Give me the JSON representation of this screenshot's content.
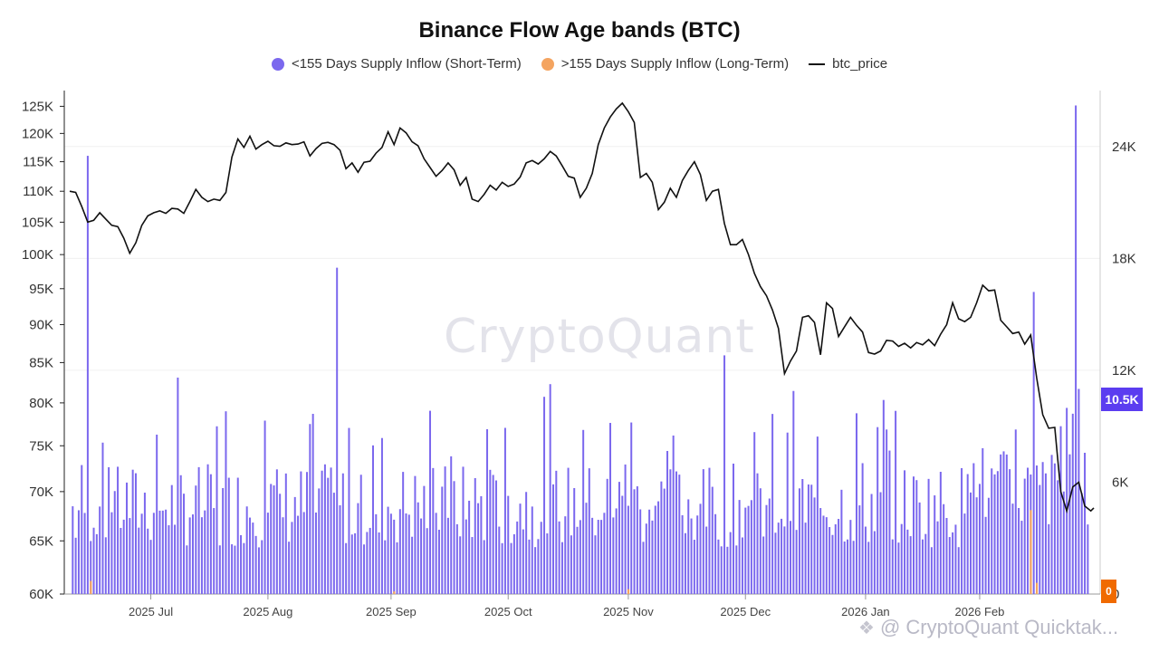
{
  "chart_data": {
    "type": "bar",
    "title": "Binance Flow Age bands (BTC)",
    "legend": {
      "placement": "top-center"
    },
    "series": [
      {
        "name": "<155 Days Supply Inflow (Short-Term)",
        "color": "#7b68ee",
        "axis": "right",
        "kind": "bar"
      },
      {
        "name": ">155 Days Supply Inflow (Long-Term)",
        "color": "#f4a460",
        "axis": "right",
        "kind": "bar"
      },
      {
        "name": "btc_price",
        "color": "#111111",
        "axis": "left",
        "kind": "line"
      }
    ],
    "x_ticks": [
      "2025 Jul",
      "2025 Aug",
      "2025 Sep",
      "2025 Oct",
      "2025 Nov",
      "2025 Dec",
      "2026 Jan",
      "2026 Feb"
    ],
    "left_axis": {
      "scale": "log",
      "range": [
        60000,
        128000
      ],
      "ticks": [
        "60K",
        "65K",
        "70K",
        "75K",
        "80K",
        "85K",
        "90K",
        "95K",
        "100K",
        "105K",
        "110K",
        "115K",
        "120K",
        "125K"
      ]
    },
    "right_axis": {
      "range": [
        0,
        27000
      ],
      "ticks": [
        "0",
        "6K",
        "12K",
        "18K",
        "24K"
      ]
    },
    "grid": true,
    "last_values": {
      "short_term": "10.5K",
      "long_term": "0"
    },
    "price_points": [
      [
        0,
        110000
      ],
      [
        2,
        109800
      ],
      [
        4,
        107500
      ],
      [
        6,
        105000
      ],
      [
        8,
        105300
      ],
      [
        10,
        106500
      ],
      [
        12,
        105500
      ],
      [
        14,
        104500
      ],
      [
        16,
        104300
      ],
      [
        18,
        102500
      ],
      [
        20,
        100200
      ],
      [
        22,
        101800
      ],
      [
        24,
        104500
      ],
      [
        26,
        106000
      ],
      [
        28,
        106500
      ],
      [
        30,
        106800
      ],
      [
        32,
        106400
      ],
      [
        34,
        107200
      ],
      [
        36,
        107100
      ],
      [
        38,
        106400
      ],
      [
        40,
        108300
      ],
      [
        42,
        110300
      ],
      [
        44,
        109000
      ],
      [
        46,
        108300
      ],
      [
        48,
        108700
      ],
      [
        50,
        108500
      ],
      [
        52,
        109800
      ],
      [
        54,
        115800
      ],
      [
        56,
        119000
      ],
      [
        58,
        117500
      ],
      [
        60,
        119500
      ],
      [
        62,
        117200
      ],
      [
        64,
        118000
      ],
      [
        66,
        118600
      ],
      [
        68,
        117800
      ],
      [
        70,
        117700
      ],
      [
        72,
        118300
      ],
      [
        74,
        118000
      ],
      [
        76,
        118100
      ],
      [
        78,
        118500
      ],
      [
        80,
        116000
      ],
      [
        82,
        117300
      ],
      [
        84,
        118200
      ],
      [
        86,
        118400
      ],
      [
        88,
        118000
      ],
      [
        90,
        117000
      ],
      [
        92,
        113800
      ],
      [
        94,
        114800
      ],
      [
        96,
        113200
      ],
      [
        98,
        114900
      ],
      [
        100,
        115100
      ],
      [
        102,
        116500
      ],
      [
        104,
        117500
      ],
      [
        106,
        120300
      ],
      [
        108,
        118000
      ],
      [
        110,
        121000
      ],
      [
        112,
        120100
      ],
      [
        114,
        118500
      ],
      [
        116,
        117800
      ],
      [
        118,
        115500
      ],
      [
        120,
        114000
      ],
      [
        122,
        112500
      ],
      [
        124,
        113500
      ],
      [
        126,
        114800
      ],
      [
        128,
        113600
      ],
      [
        130,
        111000
      ],
      [
        132,
        112300
      ],
      [
        134,
        108700
      ],
      [
        136,
        108300
      ],
      [
        138,
        109500
      ],
      [
        140,
        111000
      ],
      [
        142,
        110200
      ],
      [
        144,
        111500
      ],
      [
        146,
        110800
      ],
      [
        148,
        111200
      ],
      [
        150,
        112400
      ],
      [
        152,
        114800
      ],
      [
        154,
        115200
      ],
      [
        156,
        114600
      ],
      [
        158,
        115500
      ],
      [
        160,
        116800
      ],
      [
        162,
        116000
      ],
      [
        164,
        114300
      ],
      [
        166,
        112500
      ],
      [
        168,
        112200
      ],
      [
        170,
        109000
      ],
      [
        172,
        110500
      ],
      [
        174,
        113000
      ],
      [
        176,
        118000
      ],
      [
        178,
        121000
      ],
      [
        180,
        123000
      ],
      [
        182,
        124500
      ],
      [
        184,
        125600
      ],
      [
        186,
        124000
      ],
      [
        188,
        122000
      ],
      [
        190,
        112300
      ],
      [
        192,
        113000
      ],
      [
        194,
        111500
      ],
      [
        196,
        107000
      ],
      [
        198,
        108200
      ],
      [
        200,
        110500
      ],
      [
        202,
        109000
      ],
      [
        204,
        111800
      ],
      [
        206,
        113500
      ],
      [
        208,
        115000
      ],
      [
        210,
        112800
      ],
      [
        212,
        108500
      ],
      [
        214,
        110000
      ],
      [
        216,
        110300
      ],
      [
        218,
        104800
      ],
      [
        220,
        101500
      ],
      [
        222,
        101500
      ],
      [
        224,
        102300
      ],
      [
        226,
        100000
      ],
      [
        228,
        97200
      ],
      [
        230,
        95300
      ],
      [
        232,
        94000
      ],
      [
        234,
        92000
      ],
      [
        236,
        89500
      ],
      [
        238,
        83600
      ],
      [
        240,
        85200
      ],
      [
        242,
        86500
      ],
      [
        244,
        91000
      ],
      [
        246,
        91200
      ],
      [
        248,
        90300
      ],
      [
        250,
        86000
      ],
      [
        252,
        93000
      ],
      [
        254,
        92200
      ],
      [
        256,
        88400
      ],
      [
        258,
        89700
      ],
      [
        260,
        91000
      ],
      [
        262,
        89900
      ],
      [
        264,
        89000
      ],
      [
        266,
        86300
      ],
      [
        268,
        86100
      ],
      [
        270,
        86500
      ],
      [
        272,
        87900
      ],
      [
        274,
        87800
      ],
      [
        276,
        87100
      ],
      [
        278,
        87500
      ],
      [
        280,
        86900
      ],
      [
        282,
        87600
      ],
      [
        284,
        87300
      ],
      [
        286,
        88000
      ],
      [
        288,
        87200
      ],
      [
        290,
        88700
      ],
      [
        292,
        90000
      ],
      [
        294,
        93000
      ],
      [
        296,
        90800
      ],
      [
        298,
        90400
      ],
      [
        300,
        91000
      ],
      [
        302,
        93000
      ],
      [
        304,
        95500
      ],
      [
        306,
        94700
      ],
      [
        308,
        94800
      ],
      [
        310,
        90600
      ],
      [
        312,
        89700
      ],
      [
        314,
        88800
      ],
      [
        316,
        89000
      ],
      [
        318,
        87400
      ],
      [
        320,
        88600
      ],
      [
        322,
        83000
      ],
      [
        324,
        78600
      ],
      [
        326,
        77000
      ],
      [
        328,
        77100
      ],
      [
        330,
        70000
      ],
      [
        332,
        68000
      ],
      [
        334,
        70500
      ],
      [
        336,
        71000
      ],
      [
        338,
        68500
      ],
      [
        340,
        68000
      ],
      [
        341,
        68300
      ]
    ],
    "bar_count": 339
  },
  "watermark": "CryptoQuant",
  "source_text": "@ CryptoQuant Quicktak..."
}
